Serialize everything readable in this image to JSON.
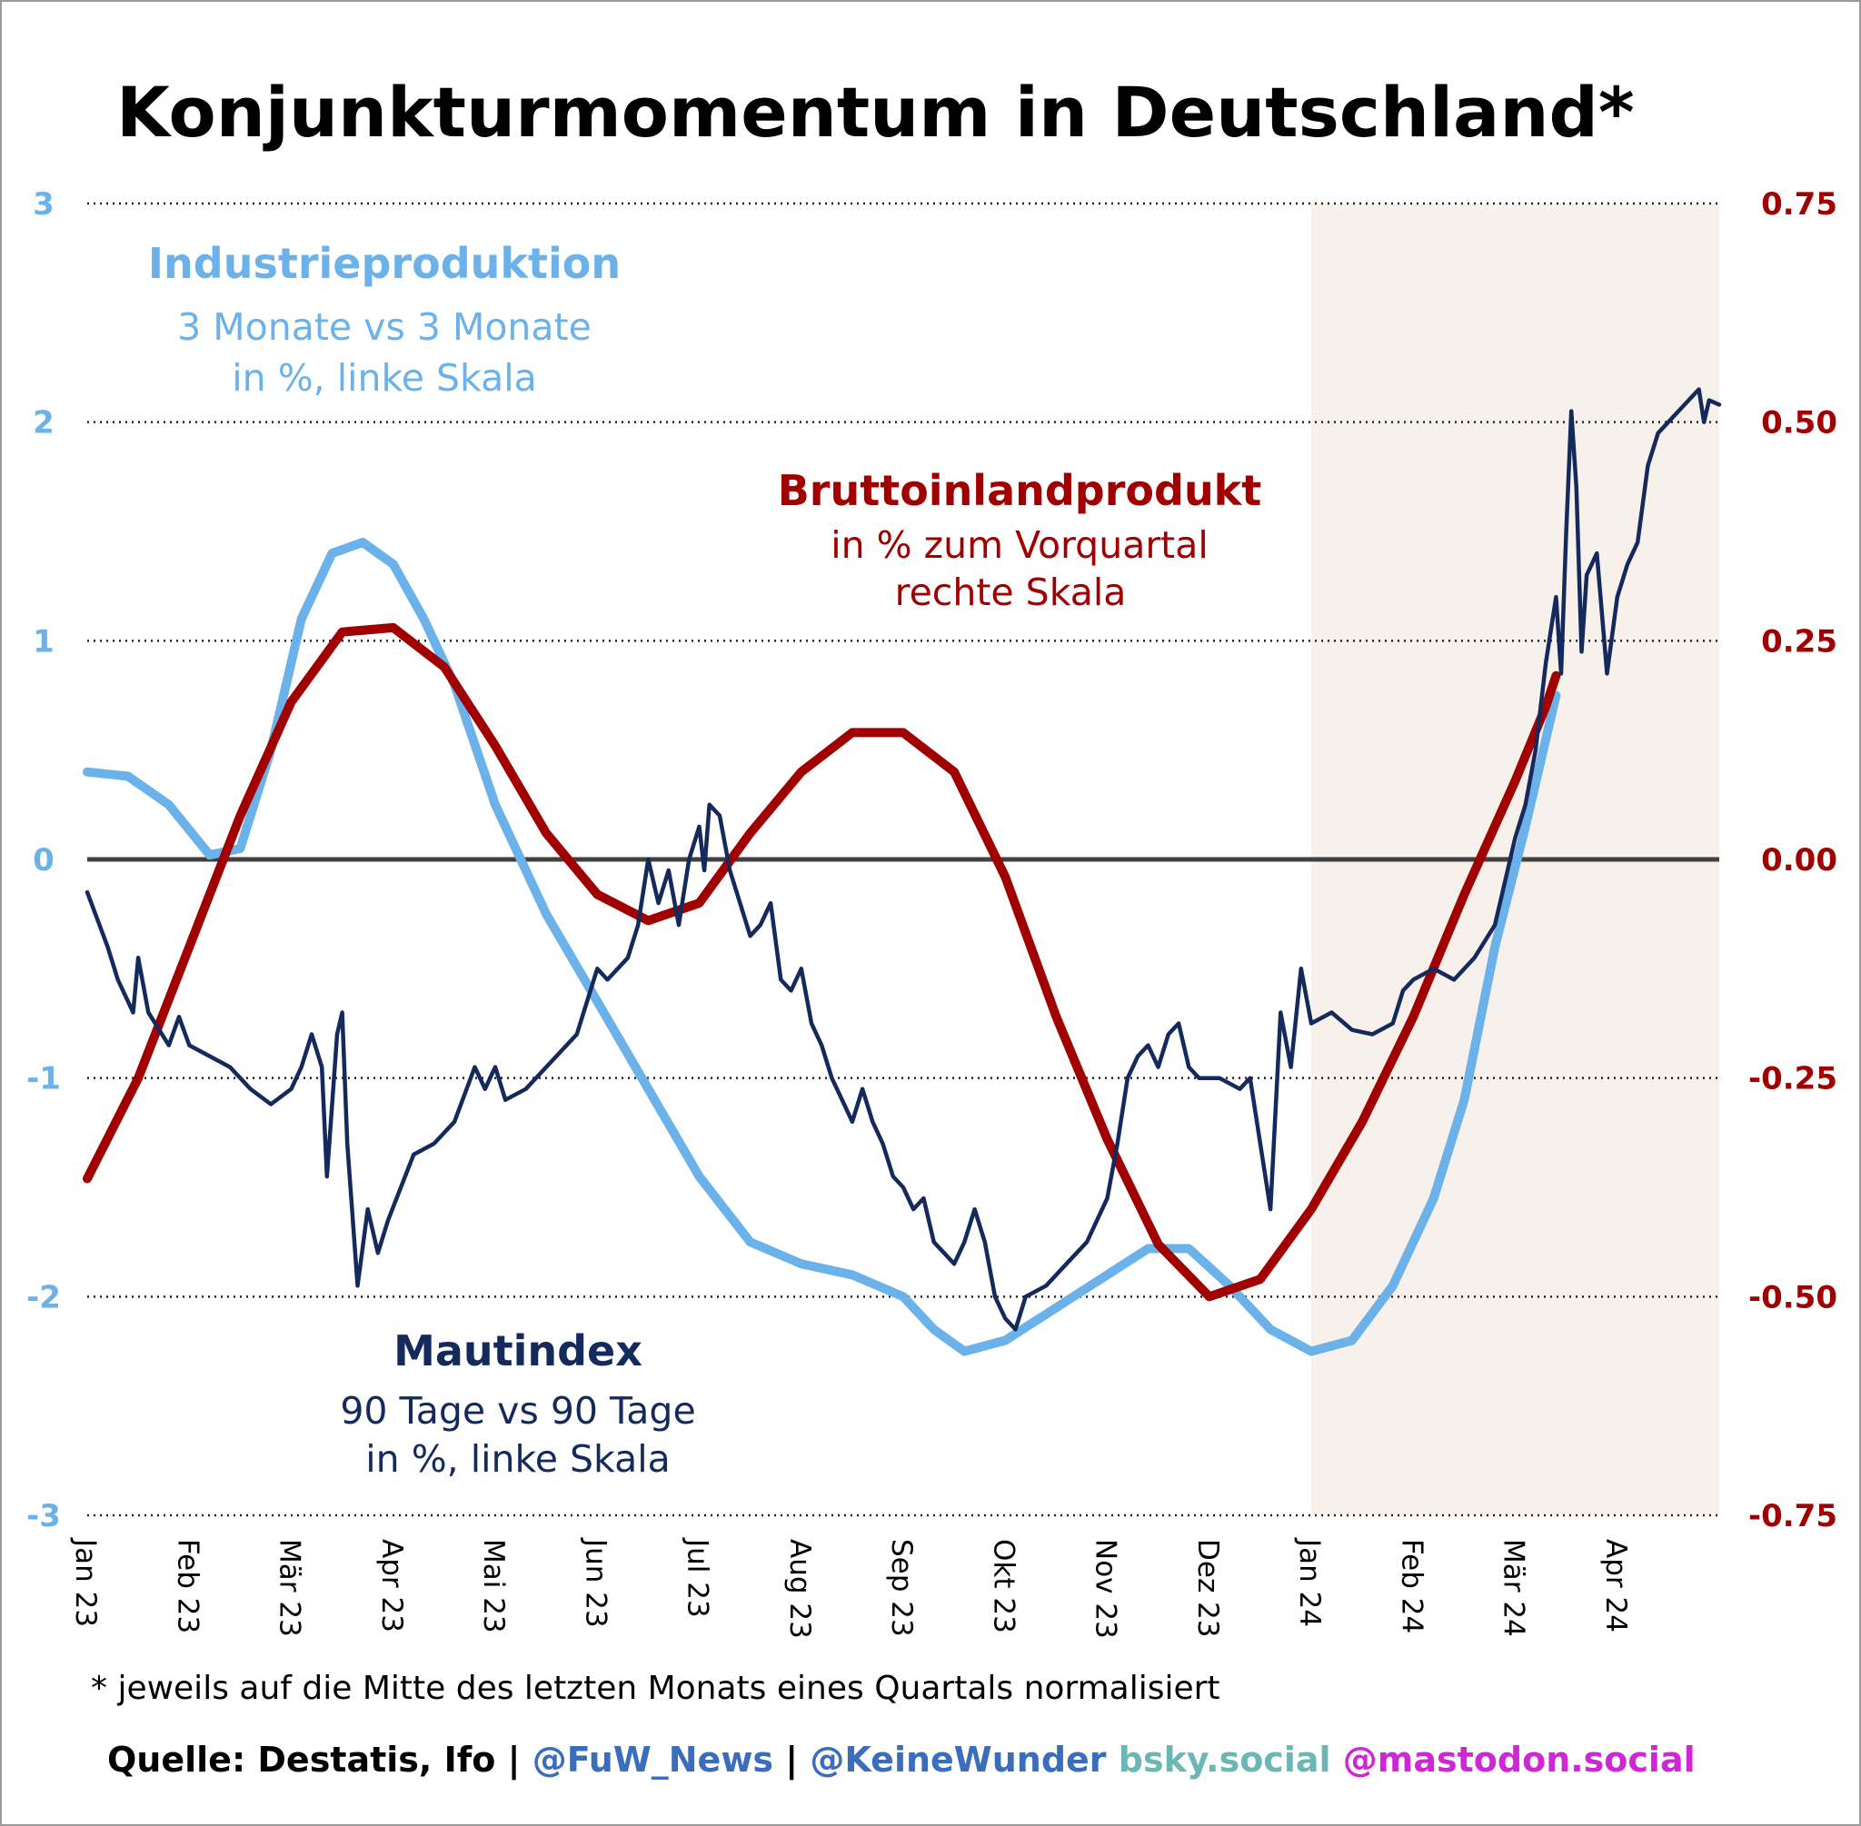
{
  "chart_data": {
    "type": "line",
    "title": "Konjunkturmomentum in Deutschland*",
    "left_axis": {
      "ylim": [
        -3,
        3
      ],
      "ticks": [
        3,
        2,
        1,
        0,
        -1,
        -2,
        -3
      ],
      "tick_labels": [
        "3",
        "2",
        "1",
        "0",
        "-1",
        "-2",
        "-3"
      ],
      "color": "#6cb2ea"
    },
    "right_axis": {
      "ylim": [
        -0.75,
        0.75
      ],
      "ticks": [
        0.75,
        0.5,
        0.25,
        0.0,
        -0.25,
        -0.5,
        -0.75
      ],
      "tick_labels": [
        "0.75",
        "0.50",
        "0.25",
        "0.00",
        "-0.25",
        "-0.50",
        "-0.75"
      ],
      "color": "#a00000"
    },
    "x_ticks": [
      "Jan 23",
      "Feb 23",
      "Mär 23",
      "Apr 23",
      "Mai 23",
      "Jun 23",
      "Jul 23",
      "Aug 23",
      "Sep 23",
      "Okt 23",
      "Nov 23",
      "Dez 23",
      "Jan 24",
      "Feb 24",
      "Mär 24",
      "Apr 24"
    ],
    "x_range_months": [
      0,
      16
    ],
    "shaded_region_months": [
      12,
      16
    ],
    "grid": "dotted horizontal",
    "series": [
      {
        "name": "Industrieproduktion",
        "axis": "left",
        "color": "#6cb2ea",
        "points": [
          [
            0,
            0.4
          ],
          [
            0.4,
            0.38
          ],
          [
            0.8,
            0.25
          ],
          [
            1.2,
            0.02
          ],
          [
            1.5,
            0.05
          ],
          [
            1.8,
            0.5
          ],
          [
            2.1,
            1.1
          ],
          [
            2.4,
            1.4
          ],
          [
            2.7,
            1.45
          ],
          [
            3.0,
            1.35
          ],
          [
            3.3,
            1.1
          ],
          [
            3.6,
            0.8
          ],
          [
            4.0,
            0.25
          ],
          [
            4.5,
            -0.25
          ],
          [
            5.0,
            -0.65
          ],
          [
            5.5,
            -1.05
          ],
          [
            6.0,
            -1.45
          ],
          [
            6.5,
            -1.75
          ],
          [
            7.0,
            -1.85
          ],
          [
            7.5,
            -1.9
          ],
          [
            8.0,
            -2.0
          ],
          [
            8.3,
            -2.15
          ],
          [
            8.6,
            -2.25
          ],
          [
            9.0,
            -2.2
          ],
          [
            9.5,
            -2.05
          ],
          [
            10.0,
            -1.9
          ],
          [
            10.4,
            -1.78
          ],
          [
            10.8,
            -1.78
          ],
          [
            11.2,
            -1.95
          ],
          [
            11.6,
            -2.15
          ],
          [
            12.0,
            -2.25
          ],
          [
            12.4,
            -2.2
          ],
          [
            12.8,
            -1.95
          ],
          [
            13.2,
            -1.55
          ],
          [
            13.5,
            -1.1
          ],
          [
            13.8,
            -0.4
          ],
          [
            14.1,
            0.15
          ],
          [
            14.4,
            0.75
          ]
        ]
      },
      {
        "name": "Bruttoinlandprodukt",
        "axis": "right",
        "color": "#a00000",
        "points": [
          [
            0,
            -0.365
          ],
          [
            0.5,
            -0.25
          ],
          [
            1.0,
            -0.1
          ],
          [
            1.5,
            0.05
          ],
          [
            2.0,
            0.18
          ],
          [
            2.5,
            0.26
          ],
          [
            3.0,
            0.265
          ],
          [
            3.5,
            0.22
          ],
          [
            4.0,
            0.13
          ],
          [
            4.5,
            0.03
          ],
          [
            5.0,
            -0.04
          ],
          [
            5.5,
            -0.07
          ],
          [
            6.0,
            -0.05
          ],
          [
            6.5,
            0.03
          ],
          [
            7.0,
            0.1
          ],
          [
            7.5,
            0.145
          ],
          [
            8.0,
            0.145
          ],
          [
            8.5,
            0.1
          ],
          [
            9.0,
            -0.02
          ],
          [
            9.5,
            -0.18
          ],
          [
            10.0,
            -0.32
          ],
          [
            10.5,
            -0.44
          ],
          [
            11.0,
            -0.5
          ],
          [
            11.5,
            -0.48
          ],
          [
            12.0,
            -0.4
          ],
          [
            12.5,
            -0.3
          ],
          [
            13.0,
            -0.18
          ],
          [
            13.5,
            -0.04
          ],
          [
            14.0,
            0.09
          ],
          [
            14.3,
            0.175
          ],
          [
            14.4,
            0.21
          ]
        ]
      },
      {
        "name": "Mautindex",
        "axis": "left",
        "color": "#142a5c",
        "points": [
          [
            0,
            -0.15
          ],
          [
            0.2,
            -0.4
          ],
          [
            0.3,
            -0.55
          ],
          [
            0.4,
            -0.65
          ],
          [
            0.45,
            -0.7
          ],
          [
            0.5,
            -0.45
          ],
          [
            0.6,
            -0.7
          ],
          [
            0.8,
            -0.85
          ],
          [
            0.9,
            -0.72
          ],
          [
            1.0,
            -0.85
          ],
          [
            1.2,
            -0.9
          ],
          [
            1.4,
            -0.95
          ],
          [
            1.6,
            -1.05
          ],
          [
            1.8,
            -1.12
          ],
          [
            2.0,
            -1.05
          ],
          [
            2.1,
            -0.95
          ],
          [
            2.2,
            -0.8
          ],
          [
            2.3,
            -0.95
          ],
          [
            2.35,
            -1.45
          ],
          [
            2.45,
            -0.8
          ],
          [
            2.5,
            -0.7
          ],
          [
            2.55,
            -1.3
          ],
          [
            2.65,
            -1.95
          ],
          [
            2.75,
            -1.6
          ],
          [
            2.85,
            -1.8
          ],
          [
            2.95,
            -1.65
          ],
          [
            3.2,
            -1.35
          ],
          [
            3.4,
            -1.3
          ],
          [
            3.6,
            -1.2
          ],
          [
            3.8,
            -0.95
          ],
          [
            3.9,
            -1.05
          ],
          [
            4.0,
            -0.95
          ],
          [
            4.1,
            -1.1
          ],
          [
            4.3,
            -1.05
          ],
          [
            4.5,
            -0.95
          ],
          [
            4.8,
            -0.8
          ],
          [
            5.0,
            -0.5
          ],
          [
            5.1,
            -0.55
          ],
          [
            5.3,
            -0.45
          ],
          [
            5.4,
            -0.3
          ],
          [
            5.5,
            0.0
          ],
          [
            5.6,
            -0.2
          ],
          [
            5.7,
            -0.05
          ],
          [
            5.8,
            -0.3
          ],
          [
            5.9,
            0.0
          ],
          [
            6.0,
            0.15
          ],
          [
            6.05,
            -0.05
          ],
          [
            6.1,
            0.25
          ],
          [
            6.2,
            0.2
          ],
          [
            6.3,
            -0.05
          ],
          [
            6.4,
            -0.2
          ],
          [
            6.5,
            -0.35
          ],
          [
            6.6,
            -0.3
          ],
          [
            6.7,
            -0.2
          ],
          [
            6.8,
            -0.55
          ],
          [
            6.9,
            -0.6
          ],
          [
            7.0,
            -0.5
          ],
          [
            7.1,
            -0.75
          ],
          [
            7.2,
            -0.85
          ],
          [
            7.3,
            -1.0
          ],
          [
            7.4,
            -1.1
          ],
          [
            7.5,
            -1.2
          ],
          [
            7.6,
            -1.05
          ],
          [
            7.7,
            -1.2
          ],
          [
            7.8,
            -1.3
          ],
          [
            7.9,
            -1.45
          ],
          [
            8.0,
            -1.5
          ],
          [
            8.1,
            -1.6
          ],
          [
            8.2,
            -1.55
          ],
          [
            8.3,
            -1.75
          ],
          [
            8.4,
            -1.8
          ],
          [
            8.5,
            -1.85
          ],
          [
            8.6,
            -1.75
          ],
          [
            8.7,
            -1.6
          ],
          [
            8.8,
            -1.75
          ],
          [
            8.9,
            -2.0
          ],
          [
            9.0,
            -2.1
          ],
          [
            9.1,
            -2.15
          ],
          [
            9.2,
            -2.0
          ],
          [
            9.4,
            -1.95
          ],
          [
            9.6,
            -1.85
          ],
          [
            9.8,
            -1.75
          ],
          [
            10.0,
            -1.55
          ],
          [
            10.1,
            -1.3
          ],
          [
            10.2,
            -1.0
          ],
          [
            10.3,
            -0.9
          ],
          [
            10.4,
            -0.85
          ],
          [
            10.5,
            -0.95
          ],
          [
            10.6,
            -0.8
          ],
          [
            10.7,
            -0.75
          ],
          [
            10.8,
            -0.95
          ],
          [
            10.9,
            -1.0
          ],
          [
            11.1,
            -1.0
          ],
          [
            11.3,
            -1.05
          ],
          [
            11.4,
            -1.0
          ],
          [
            11.5,
            -1.3
          ],
          [
            11.6,
            -1.6
          ],
          [
            11.7,
            -0.7
          ],
          [
            11.8,
            -0.95
          ],
          [
            11.9,
            -0.5
          ],
          [
            12.0,
            -0.75
          ],
          [
            12.2,
            -0.7
          ],
          [
            12.4,
            -0.78
          ],
          [
            12.6,
            -0.8
          ],
          [
            12.8,
            -0.75
          ],
          [
            12.9,
            -0.6
          ],
          [
            13.0,
            -0.55
          ],
          [
            13.2,
            -0.5
          ],
          [
            13.4,
            -0.55
          ],
          [
            13.6,
            -0.45
          ],
          [
            13.8,
            -0.3
          ],
          [
            14.0,
            0.1
          ],
          [
            14.1,
            0.25
          ],
          [
            14.2,
            0.5
          ],
          [
            14.3,
            0.9
          ],
          [
            14.4,
            1.2
          ],
          [
            14.45,
            0.85
          ],
          [
            14.5,
            1.5
          ],
          [
            14.55,
            2.05
          ],
          [
            14.6,
            1.7
          ],
          [
            14.65,
            0.95
          ],
          [
            14.7,
            1.3
          ],
          [
            14.8,
            1.4
          ],
          [
            14.9,
            0.85
          ],
          [
            15.0,
            1.2
          ],
          [
            15.1,
            1.35
          ],
          [
            15.2,
            1.45
          ],
          [
            15.3,
            1.8
          ],
          [
            15.4,
            1.95
          ],
          [
            15.5,
            2.0
          ],
          [
            15.6,
            2.05
          ],
          [
            15.7,
            2.1
          ],
          [
            15.8,
            2.15
          ],
          [
            15.85,
            2.0
          ],
          [
            15.9,
            2.1
          ],
          [
            16.0,
            2.08
          ]
        ]
      }
    ],
    "annotations": {
      "industrie": {
        "title": "Industrieproduktion",
        "line1": "3 Monate vs 3 Monate",
        "line2": "in %, linke Skala"
      },
      "bip": {
        "title": "Bruttoinlandprodukt",
        "line1": "in % zum Vorquartal",
        "line2": "rechte Skala"
      },
      "maut": {
        "title": "Mautindex",
        "line1": "90 Tage vs 90 Tage",
        "line2": "in %, linke Skala"
      }
    }
  },
  "footnote": "* jeweils auf die Mitte des letzten Monats eines Quartals normalisiert",
  "source": {
    "part1": "Quelle: Destatis, Ifo | ",
    "part2": "@FuW_News",
    "sep": " | ",
    "part3": "@KeineWunder",
    "part4": " bsky.social",
    "part5": " @mastodon.social",
    "colors": {
      "part1": "#000000",
      "part2": "#3a6dbc",
      "part3": "#3a6dbc",
      "part4": "#6bb7b5",
      "part5": "#d126d6"
    }
  },
  "colors": {
    "zero_line": "#404040",
    "grid": "#222222",
    "shade": "#f8f1eb"
  }
}
